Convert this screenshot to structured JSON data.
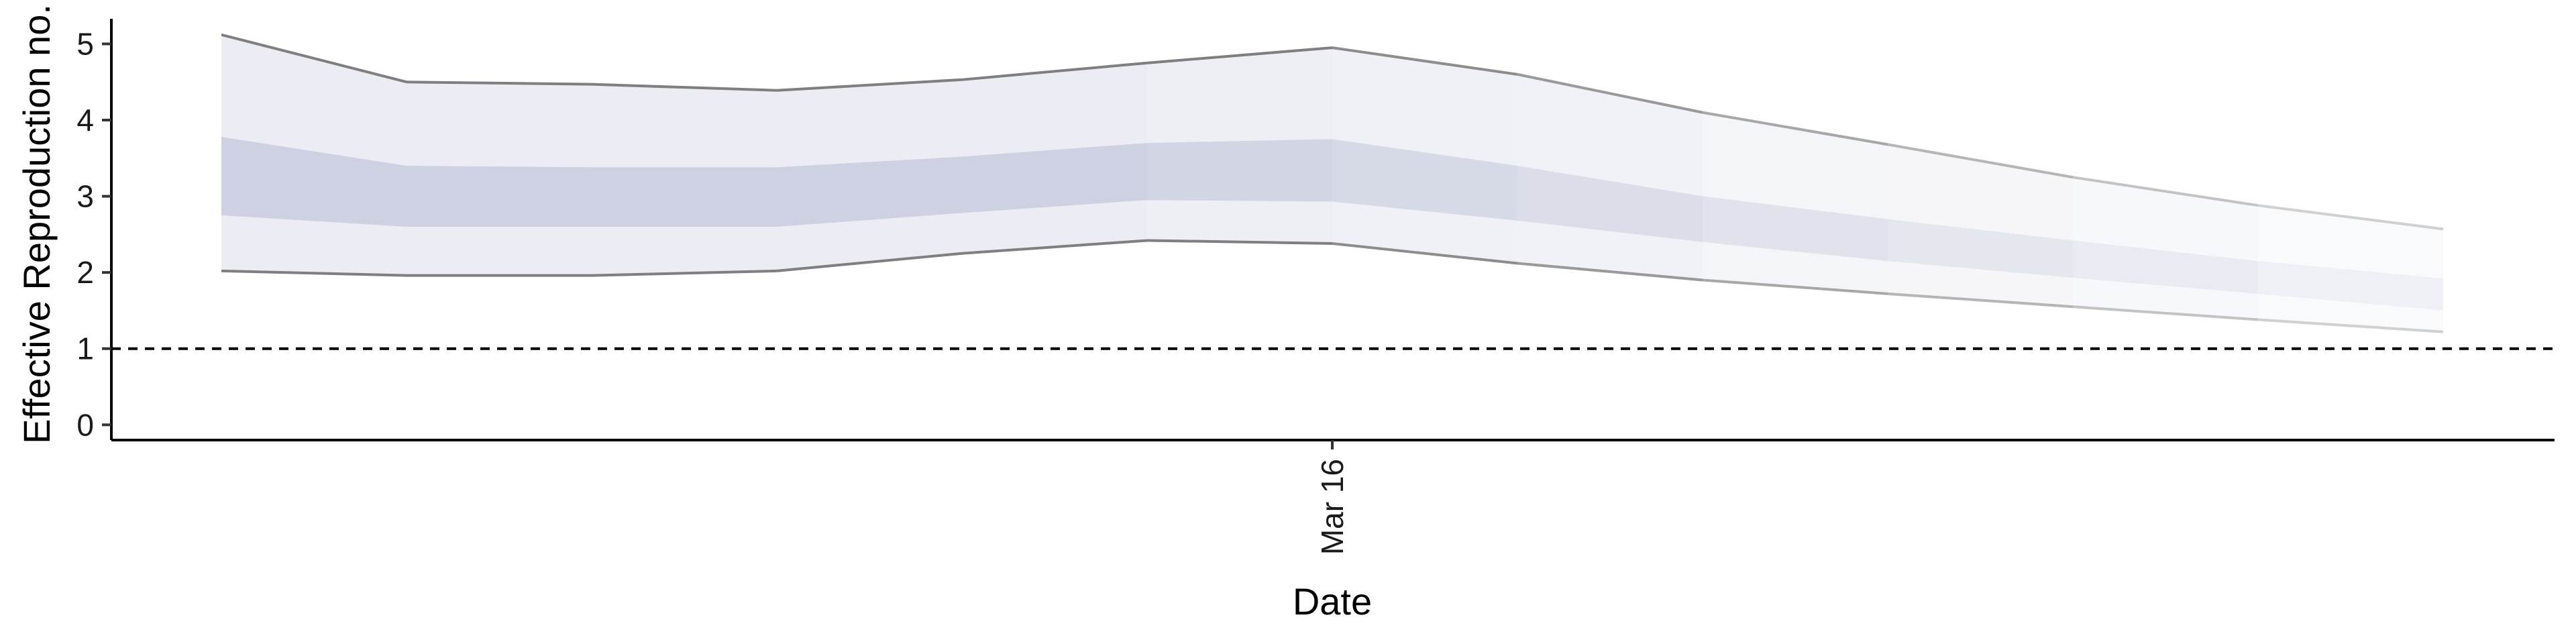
{
  "chart_data": {
    "type": "area",
    "xlabel": "Date",
    "ylabel": "Effective Reproduction no.",
    "x_tick_labels": [
      {
        "x": 6,
        "label": "Mar 16"
      }
    ],
    "ylim": [
      -0.2,
      5.4
    ],
    "y_ticks": [
      0,
      1,
      2,
      3,
      4,
      5
    ],
    "reference_line": {
      "y": 1,
      "style": "dashed"
    },
    "x": [
      0,
      1,
      2,
      3,
      4,
      5,
      6,
      7,
      8,
      9,
      10,
      11,
      12
    ],
    "outer_upper": [
      5.12,
      4.5,
      4.47,
      4.39,
      4.53,
      4.75,
      4.95,
      4.6,
      4.1,
      3.68,
      3.25,
      2.88,
      2.57
    ],
    "outer_lower": [
      2.02,
      1.96,
      1.96,
      2.02,
      2.25,
      2.42,
      2.38,
      2.12,
      1.9,
      1.72,
      1.55,
      1.38,
      1.22
    ],
    "inner_upper": [
      3.78,
      3.4,
      3.38,
      3.38,
      3.52,
      3.7,
      3.75,
      3.4,
      3.0,
      2.7,
      2.42,
      2.15,
      1.92
    ],
    "inner_lower": [
      2.75,
      2.6,
      2.6,
      2.6,
      2.78,
      2.95,
      2.93,
      2.68,
      2.4,
      2.15,
      1.93,
      1.72,
      1.5
    ],
    "colors": {
      "band": "#8791b8",
      "outline": "#7f7f7f",
      "axis": "#000000"
    }
  }
}
